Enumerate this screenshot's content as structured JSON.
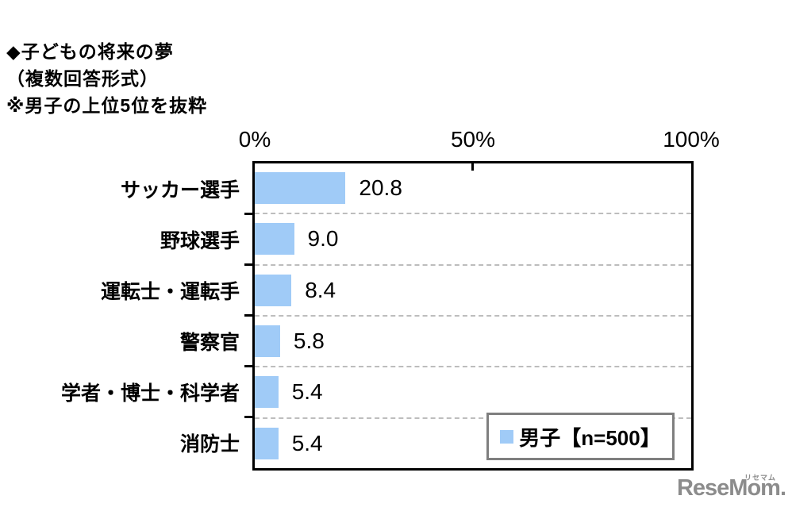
{
  "title": {
    "line1": "◆子どもの将来の夢",
    "line2": "（複数回答形式）",
    "line3": "※男子の上位5位を抜粋"
  },
  "chart_data": {
    "type": "bar",
    "orientation": "horizontal",
    "title": "◆子どもの将来の夢（複数回答形式）※男子の上位5位を抜粋",
    "categories": [
      "サッカー選手",
      "野球選手",
      "運転士・運転手",
      "警察官",
      "学者・博士・科学者",
      "消防士"
    ],
    "values": [
      20.8,
      9.0,
      8.4,
      5.8,
      5.4,
      5.4
    ],
    "value_labels": [
      "20.8",
      "9.0",
      "8.4",
      "5.8",
      "5.4",
      "5.4"
    ],
    "x_ticks": [
      "0%",
      "50%",
      "100%"
    ],
    "xlim": [
      0,
      100
    ],
    "grid": "dashed-horizontal",
    "bar_color": "#A0CBF7",
    "legend": {
      "label": "男子【n=500】",
      "position": "inside-bottom-right"
    }
  },
  "watermark": {
    "text": "ReseMom.",
    "ruby": "リセマム",
    "color": "#8C8C8C"
  }
}
